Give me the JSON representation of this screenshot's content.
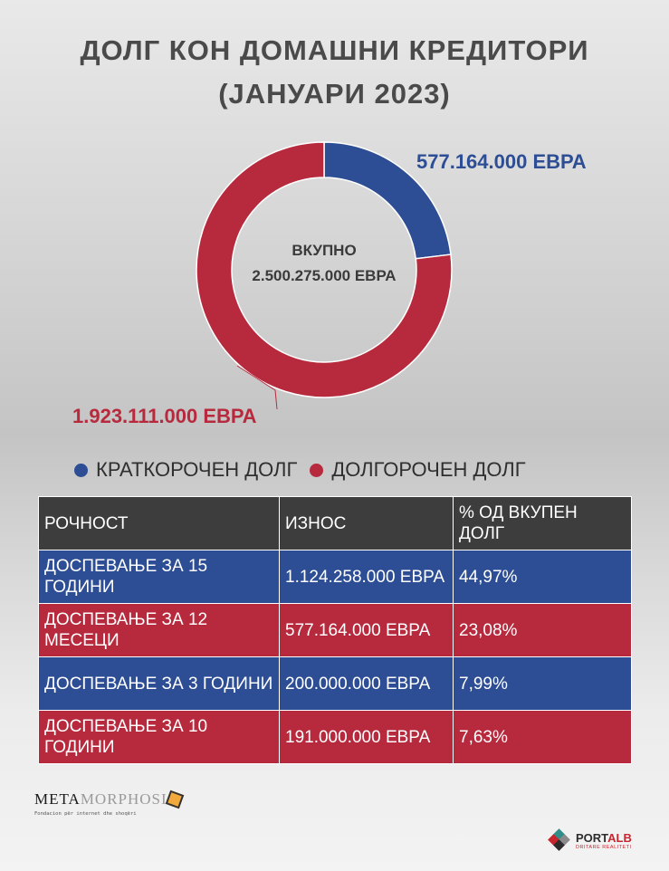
{
  "title_line1": "ДОЛГ КОН ДОМАШНИ КРЕДИТОРИ",
  "title_line2": "(ЈАНУАРИ 2023)",
  "colors": {
    "short": "#2d4e95",
    "long": "#b72a3d",
    "header": "#3d3d3d",
    "title": "#4a4a4a"
  },
  "chart_data": {
    "type": "pie",
    "donut": true,
    "center_label_line1": "ВКУПНО",
    "center_label_line2": "2.500.275.000 ЕВРА",
    "slices": [
      {
        "name": "КРАТКОРОЧЕН ДОЛГ",
        "value": 577164000,
        "label": "577.164.000 ЕВРА",
        "color": "#2d4e95"
      },
      {
        "name": "ДОЛГОРОЧЕН ДОЛГ",
        "value": 1923111000,
        "label": "1.923.111.000 ЕВРА",
        "color": "#b72a3d"
      }
    ],
    "legend": [
      "КРАТКОРОЧЕН ДОЛГ",
      "ДОЛГОРОЧЕН ДОЛГ"
    ]
  },
  "table": {
    "headers": [
      "РОЧНОСТ",
      "ИЗНОС",
      "% ОД ВКУПЕН ДОЛГ"
    ],
    "rows": [
      {
        "maturity": "ДОСПЕВАЊЕ ЗА 15 ГОДИНИ",
        "amount": "1.124.258.000 ЕВРА",
        "percent": "44,97%",
        "color": "blue"
      },
      {
        "maturity": "ДОСПЕВАЊЕ ЗА 12 МЕСЕЦИ",
        "amount": "577.164.000 ЕВРА",
        "percent": "23,08%",
        "color": "red"
      },
      {
        "maturity": "ДОСПЕВАЊЕ ЗА 3 ГОДИНИ",
        "amount": "200.000.000 ЕВРА",
        "percent": "7,99%",
        "color": "blue"
      },
      {
        "maturity": "ДОСПЕВАЊЕ ЗА 10 ГОДИНИ",
        "amount": "191.000.000 ЕВРА",
        "percent": "7,63%",
        "color": "red"
      }
    ]
  },
  "logos": {
    "meta_word_dark": "META",
    "meta_word_light": "MORPHOSIS",
    "meta_sub": "Fondacion për internet dhe shoqëri",
    "portal_dark": "PORT",
    "portal_red": "ALB",
    "portal_tag": "DRITARE REALITETI"
  }
}
